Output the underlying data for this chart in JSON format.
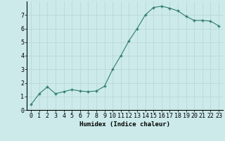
{
  "x": [
    0,
    1,
    2,
    3,
    4,
    5,
    6,
    7,
    8,
    9,
    10,
    11,
    12,
    13,
    14,
    15,
    16,
    17,
    18,
    19,
    20,
    21,
    22,
    23
  ],
  "y": [
    0.4,
    1.2,
    1.7,
    1.2,
    1.35,
    1.5,
    1.4,
    1.35,
    1.4,
    1.75,
    3.0,
    4.0,
    5.1,
    6.0,
    7.0,
    7.55,
    7.65,
    7.5,
    7.3,
    6.9,
    6.6,
    6.6,
    6.55,
    6.2
  ],
  "line_color": "#2e7d6e",
  "marker": "+",
  "marker_size": 3.5,
  "bg_color": "#cceaea",
  "grid_color": "#b8d4d4",
  "xlabel": "Humidex (Indice chaleur)",
  "xlim": [
    -0.5,
    23.5
  ],
  "ylim": [
    0,
    8
  ],
  "yticks": [
    0,
    1,
    2,
    3,
    4,
    5,
    6,
    7
  ],
  "xticks": [
    0,
    1,
    2,
    3,
    4,
    5,
    6,
    7,
    8,
    9,
    10,
    11,
    12,
    13,
    14,
    15,
    16,
    17,
    18,
    19,
    20,
    21,
    22,
    23
  ],
  "xlabel_fontsize": 6.5,
  "tick_fontsize": 6
}
